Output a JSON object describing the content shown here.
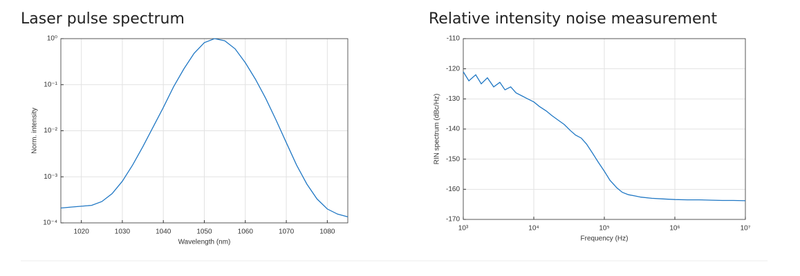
{
  "chart_data": [
    {
      "type": "line",
      "title": "Laser pulse spectrum",
      "xlabel": "Wavelength (nm)",
      "ylabel": "Norm. intensity",
      "x": [
        1015,
        1017.5,
        1020,
        1022.5,
        1025,
        1027.5,
        1030,
        1032.5,
        1035,
        1037.5,
        1040,
        1042.5,
        1045,
        1047.5,
        1050,
        1052.5,
        1055,
        1057.5,
        1060,
        1062.5,
        1065,
        1067.5,
        1070,
        1072.5,
        1075,
        1077.5,
        1080,
        1082.5,
        1085
      ],
      "values": [
        0.00021,
        0.00022,
        0.00023,
        0.00024,
        0.00029,
        0.00043,
        0.0008,
        0.0018,
        0.0045,
        0.012,
        0.032,
        0.09,
        0.22,
        0.48,
        0.82,
        1.0,
        0.9,
        0.6,
        0.3,
        0.13,
        0.05,
        0.017,
        0.0055,
        0.0018,
        0.0007,
        0.00033,
        0.0002,
        0.000155,
        0.000135
      ],
      "color": "#1f77c4",
      "ylog": true,
      "grid": true,
      "xlim": [
        1015,
        1085
      ],
      "xticks": [
        1020,
        1030,
        1040,
        1050,
        1060,
        1070,
        1080
      ],
      "ylim": [
        0.0001,
        1
      ],
      "yticks": [
        {
          "value": 0.0001,
          "label": "10⁻⁴"
        },
        {
          "value": 0.001,
          "label": "10⁻³"
        },
        {
          "value": 0.01,
          "label": "10⁻²"
        },
        {
          "value": 0.1,
          "label": "10⁻¹"
        },
        {
          "value": 1,
          "label": "10⁰"
        }
      ]
    },
    {
      "type": "line",
      "title": "Relative intensity noise measurement",
      "xlabel": "Frequency (Hz)",
      "ylabel": "RIN spectrum (dBc/Hz)",
      "x": [
        1000,
        1200,
        1500,
        1800,
        2200,
        2700,
        3300,
        3900,
        4700,
        5600,
        6800,
        8200,
        10000,
        12000,
        15000,
        18000,
        22000,
        27000,
        33000,
        39000,
        47000,
        56000,
        68000,
        82000,
        100000,
        120000,
        150000,
        180000,
        220000,
        270000,
        330000,
        470000,
        680000,
        1000000,
        1500000,
        2200000,
        3300000,
        4700000,
        6800000,
        10000000
      ],
      "values": [
        -121,
        -124,
        -122,
        -125,
        -123,
        -126,
        -124.5,
        -127,
        -126,
        -128,
        -129,
        -130,
        -131,
        -132.5,
        -134,
        -135.5,
        -137,
        -138.5,
        -140.5,
        -142,
        -143,
        -145,
        -148,
        -151,
        -154,
        -157,
        -159.5,
        -161,
        -161.8,
        -162.2,
        -162.6,
        -163,
        -163.2,
        -163.4,
        -163.5,
        -163.5,
        -163.6,
        -163.7,
        -163.7,
        -163.8
      ],
      "color": "#1f77c4",
      "xlog": true,
      "grid": true,
      "xlim": [
        1000,
        10000000
      ],
      "xticks": [
        {
          "value": 1000,
          "label": "10³"
        },
        {
          "value": 10000,
          "label": "10⁴"
        },
        {
          "value": 100000,
          "label": "10⁵"
        },
        {
          "value": 1000000,
          "label": "10⁶"
        },
        {
          "value": 10000000,
          "label": "10⁷"
        }
      ],
      "ylim": [
        -170,
        -110
      ],
      "yticks": [
        -170,
        -160,
        -150,
        -140,
        -130,
        -120,
        -110
      ]
    }
  ]
}
